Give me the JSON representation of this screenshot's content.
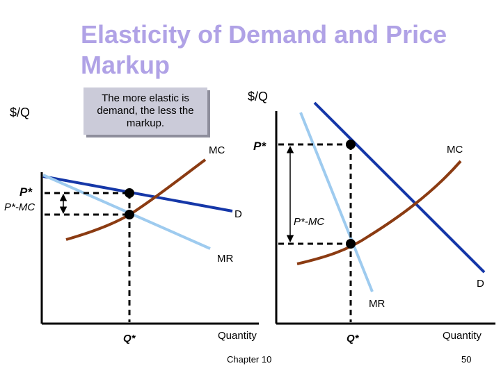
{
  "slide": {
    "title": "Elasticity of Demand and Price Markup",
    "callout": "The more elastic is demand, the less the markup.",
    "footer_chapter": "Chapter 10",
    "footer_page": "50"
  },
  "colors": {
    "demand": "#1537a8",
    "marginal_revenue": "#9ecbef",
    "marginal_cost": "#8b3b12",
    "title": "#b0a2e6",
    "callout_fill": "#cbcbd9"
  },
  "left_graph": {
    "y_axis_label": "$/Q",
    "x_axis_label": "Quantity",
    "price_label": "P*",
    "markup_label": "P*-MC",
    "quantity_label": "Q*",
    "mc_label": "MC",
    "demand_label": "D",
    "mr_label": "MR"
  },
  "right_graph": {
    "y_axis_label": "$/Q",
    "x_axis_label": "Quantity",
    "price_label": "P*",
    "markup_label": "P*-MC",
    "quantity_label": "Q*",
    "mc_label": "MC",
    "demand_label": "D",
    "mr_label": "MR"
  }
}
